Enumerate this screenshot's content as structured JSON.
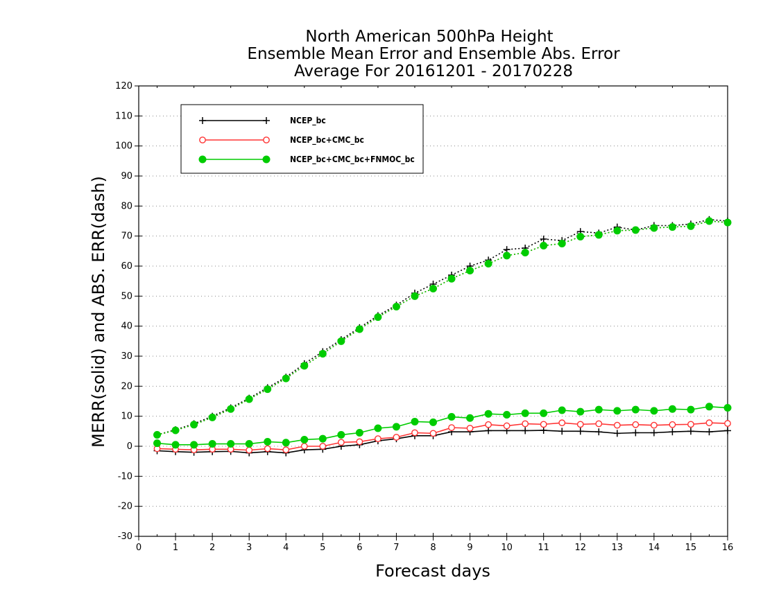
{
  "chart_data": {
    "type": "line",
    "title": [
      "North American 500hPa Height",
      "Ensemble Mean Error and Ensemble Abs. Error",
      "Average For 20161201 - 20170228"
    ],
    "xlabel": "Forecast days",
    "ylabel": "MERR(solid) and ABS. ERR(dash)",
    "xlim": [
      0,
      16
    ],
    "ylim": [
      -30,
      120
    ],
    "xticks": [
      0,
      1,
      2,
      3,
      4,
      5,
      6,
      7,
      8,
      9,
      10,
      11,
      12,
      13,
      14,
      15,
      16
    ],
    "yticks": [
      -30,
      -20,
      -10,
      0,
      10,
      20,
      30,
      40,
      50,
      60,
      70,
      80,
      90,
      100,
      110,
      120
    ],
    "grid": "horizontal dotted",
    "legend_position": "top-left",
    "x": [
      0.5,
      1,
      1.5,
      2,
      2.5,
      3,
      3.5,
      4,
      4.5,
      5,
      5.5,
      6,
      6.5,
      7,
      7.5,
      8,
      8.5,
      9,
      9.5,
      10,
      10.5,
      11,
      11.5,
      12,
      12.5,
      13,
      13.5,
      14,
      14.5,
      15,
      15.5,
      16
    ],
    "series": [
      {
        "name": "NCEP_bc",
        "color": "#000000",
        "marker": "plus",
        "merr": [
          -1.5,
          -1.8,
          -2,
          -1.8,
          -1.7,
          -2.2,
          -1.8,
          -2.2,
          -1.2,
          -1,
          0,
          0.5,
          1.8,
          2.5,
          3.5,
          3.5,
          4.8,
          4.8,
          5.2,
          5.2,
          5.2,
          5.3,
          5,
          5,
          4.8,
          4.3,
          4.5,
          4.5,
          4.8,
          5,
          4.8,
          5.2
        ],
        "abs_err": [
          3.8,
          5.5,
          7.5,
          10,
          12.8,
          16,
          19.5,
          23,
          27.5,
          31.5,
          35.5,
          39.5,
          43.5,
          47,
          51,
          54,
          57,
          60,
          62,
          65.5,
          66,
          69,
          68.5,
          71.5,
          71,
          73,
          72,
          73.5,
          73.5,
          74,
          75.5,
          75
        ]
      },
      {
        "name": "NCEP_bc+CMC_bc",
        "color": "#ff3333",
        "marker": "circle-open",
        "merr": [
          -0.8,
          -1,
          -1.2,
          -1,
          -1,
          -1.3,
          -0.8,
          -1.2,
          0,
          0,
          1.3,
          1.5,
          2.5,
          3,
          4.5,
          4.3,
          6.2,
          6,
          7.2,
          6.8,
          7.5,
          7.3,
          7.8,
          7.3,
          7.5,
          7,
          7.2,
          7,
          7.2,
          7.3,
          7.8,
          7.6
        ]
      },
      {
        "name": "NCEP_bc+CMC_bc+FNMOC_bc",
        "color": "#00cc00",
        "marker": "circle-filled",
        "merr": [
          1,
          0.5,
          0.5,
          0.8,
          0.8,
          0.8,
          1.5,
          1.2,
          2.2,
          2.5,
          3.8,
          4.5,
          6,
          6.5,
          8.2,
          8,
          9.8,
          9.4,
          10.8,
          10.5,
          11,
          11,
          12,
          11.5,
          12.2,
          11.8,
          12.2,
          11.8,
          12.4,
          12.2,
          13.2,
          12.8
        ]
      }
    ],
    "abs_err_shared": [
      3.8,
      5.3,
      7.2,
      9.6,
      12.4,
      15.7,
      19,
      22.6,
      26.8,
      30.8,
      35,
      39,
      43,
      46.5,
      50,
      52.5,
      55.8,
      58.5,
      60.8,
      63.5,
      64.5,
      66.8,
      67.5,
      69.8,
      70.4,
      71.8,
      72,
      72.7,
      73,
      73.3,
      75,
      74.5
    ]
  }
}
